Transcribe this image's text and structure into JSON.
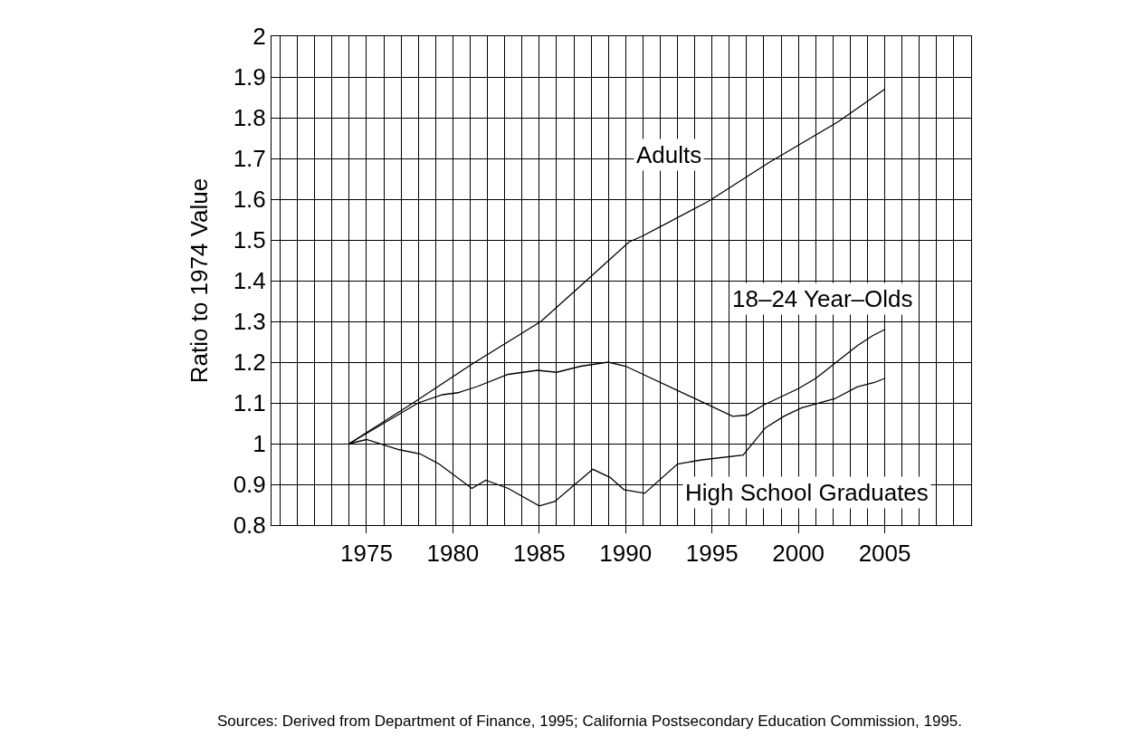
{
  "chart_data": {
    "type": "line",
    "ylabel": "Ratio to 1974 Value",
    "series": [
      {
        "name": "Adults",
        "color": "#000000",
        "x": [
          1974,
          1977.7,
          1981.1,
          1985.1,
          1987.2,
          1990.2,
          1991,
          1994.8,
          1998.3,
          2002.3,
          2005
        ],
        "values": [
          1.0,
          1.1,
          1.195,
          1.3,
          1.38,
          1.495,
          1.51,
          1.595,
          1.69,
          1.79,
          1.87
        ]
      },
      {
        "name": "18–24 Year–Olds",
        "color": "#000000",
        "x": [
          1974,
          1978,
          1979.4,
          1980.3,
          1981.4,
          1983.2,
          1984.9,
          1986,
          1987.4,
          1989,
          1990,
          1996.2,
          1997,
          1998,
          2000,
          2001,
          2003.4,
          2004.3,
          2005
        ],
        "values": [
          1.0,
          1.1,
          1.12,
          1.125,
          1.14,
          1.17,
          1.18,
          1.175,
          1.19,
          1.2,
          1.19,
          1.067,
          1.07,
          1.095,
          1.135,
          1.16,
          1.24,
          1.265,
          1.28
        ]
      },
      {
        "name": "High School Graduates",
        "color": "#000000",
        "x": [
          1974,
          1975,
          1976.9,
          1978.1,
          1979.2,
          1981.1,
          1981.9,
          1983.2,
          1985,
          1985.9,
          1988.1,
          1989.1,
          1989.9,
          1991.1,
          1993,
          1994.4,
          1996.8,
          1998.1,
          1999.2,
          2000.2,
          2002.1,
          2003.4,
          2004.4,
          2005
        ],
        "values": [
          1.0,
          1.01,
          0.985,
          0.975,
          0.95,
          0.89,
          0.91,
          0.89,
          0.847,
          0.858,
          0.937,
          0.917,
          0.887,
          0.878,
          0.95,
          0.96,
          0.972,
          1.039,
          1.068,
          1.088,
          1.11,
          1.139,
          1.15,
          1.16
        ]
      }
    ],
    "xlim": [
      1969.5,
      2010
    ],
    "xticks": [
      1975,
      1980,
      1985,
      1990,
      1995,
      2000,
      2005
    ],
    "ylim": [
      0.8,
      2
    ],
    "yticks": [
      0.8,
      0.9,
      1,
      1.1,
      1.2,
      1.3,
      1.4,
      1.5,
      1.6,
      1.7,
      1.8,
      1.9,
      2
    ],
    "grid": true,
    "legend": false,
    "line_style": "solid",
    "marker": "none",
    "annotations": [
      "Sources: Derived from Department of Finance, 1995; California Postsecondary Education Commission, 1995."
    ]
  }
}
